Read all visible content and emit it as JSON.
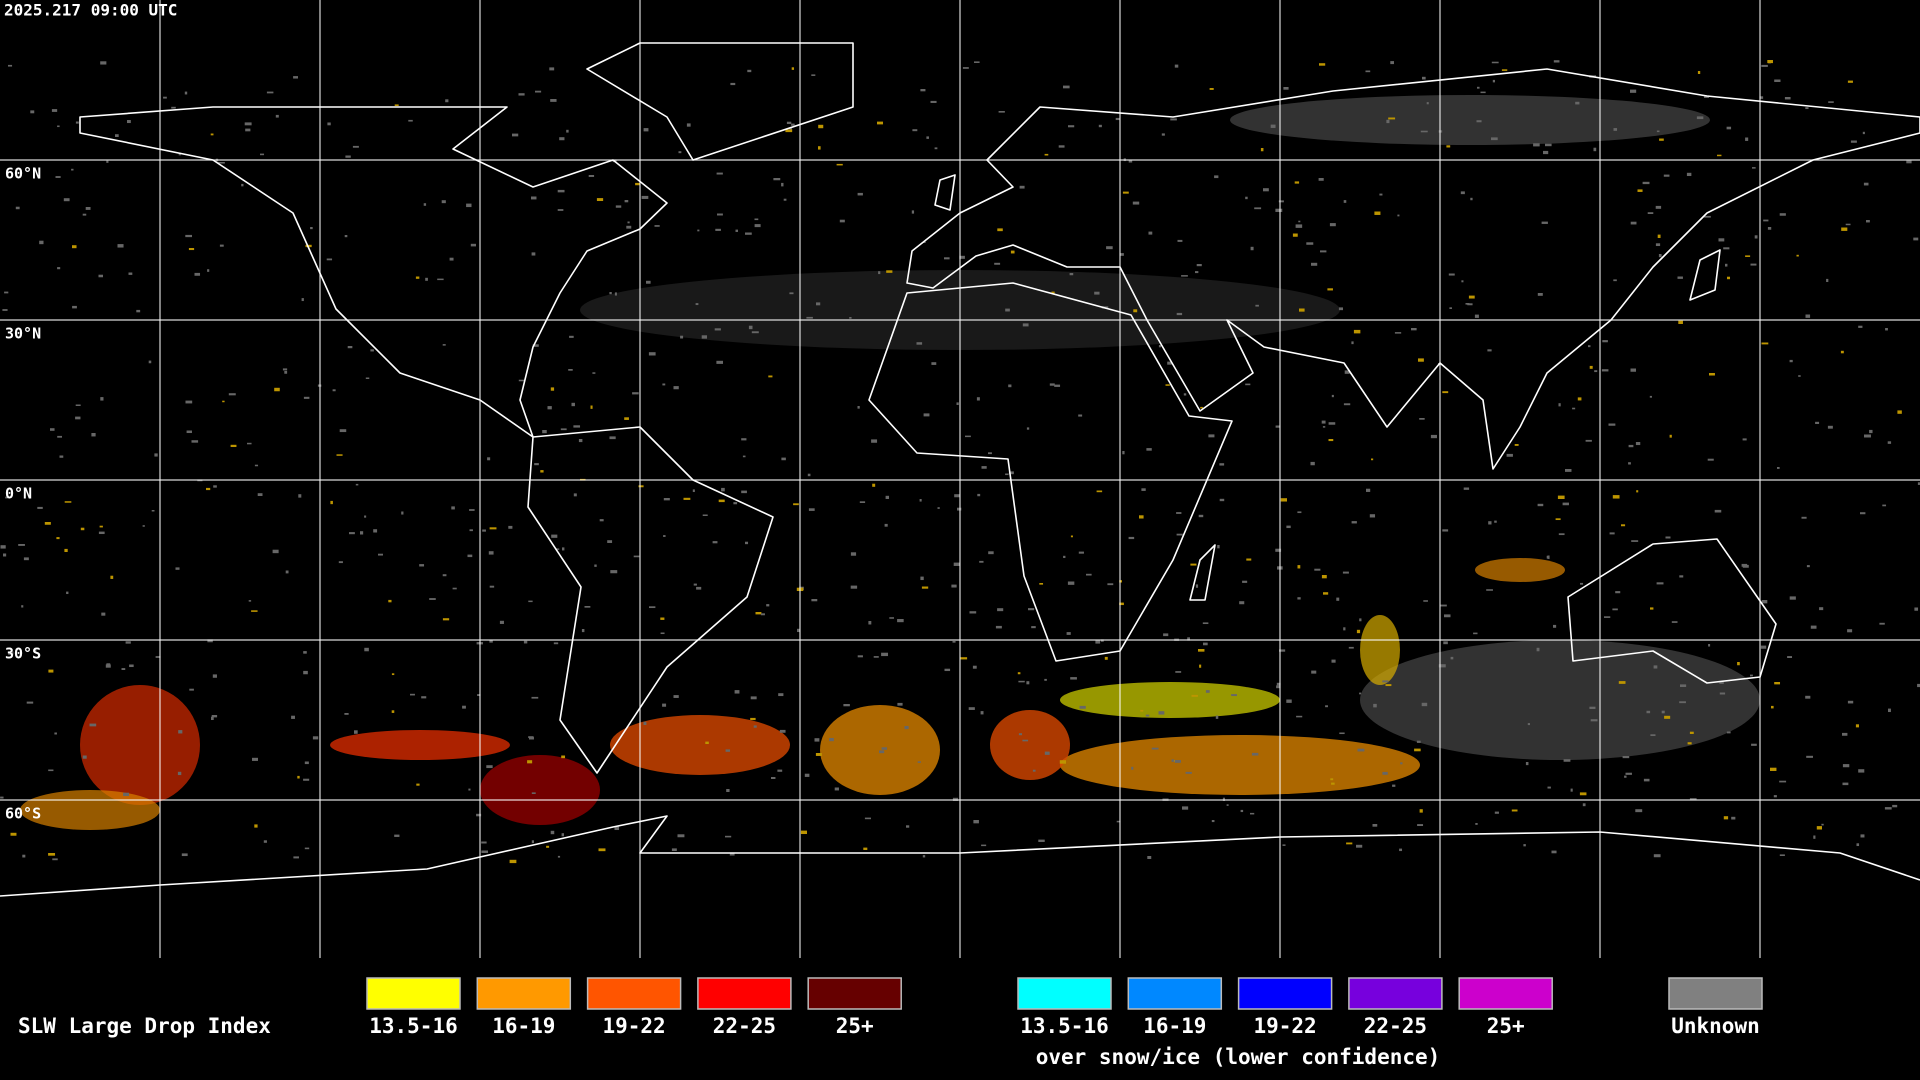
{
  "header": {
    "timestamp": "2025.217 09:00 UTC"
  },
  "map": {
    "latitude_labels": [
      "60°N",
      "30°N",
      "0°N",
      "30°S",
      "60°S"
    ]
  },
  "legend": {
    "title": "SLW Large Drop Index",
    "primary": [
      {
        "label": "13.5-16",
        "color": "#ffff00"
      },
      {
        "label": "16-19",
        "color": "#ff9900"
      },
      {
        "label": "19-22",
        "color": "#ff5500"
      },
      {
        "label": "22-25",
        "color": "#ff0000"
      },
      {
        "label": "25+",
        "color": "#660000"
      }
    ],
    "snow_ice": {
      "items": [
        {
          "label": "13.5-16",
          "color": "#00ffff"
        },
        {
          "label": "16-19",
          "color": "#0088ff"
        },
        {
          "label": "19-22",
          "color": "#0000ff"
        },
        {
          "label": "22-25",
          "color": "#7700dd"
        },
        {
          "label": "25+",
          "color": "#cc00cc"
        }
      ],
      "note": "over snow/ice (lower confidence)"
    },
    "unknown": {
      "label": "Unknown",
      "color": "#808080"
    }
  }
}
